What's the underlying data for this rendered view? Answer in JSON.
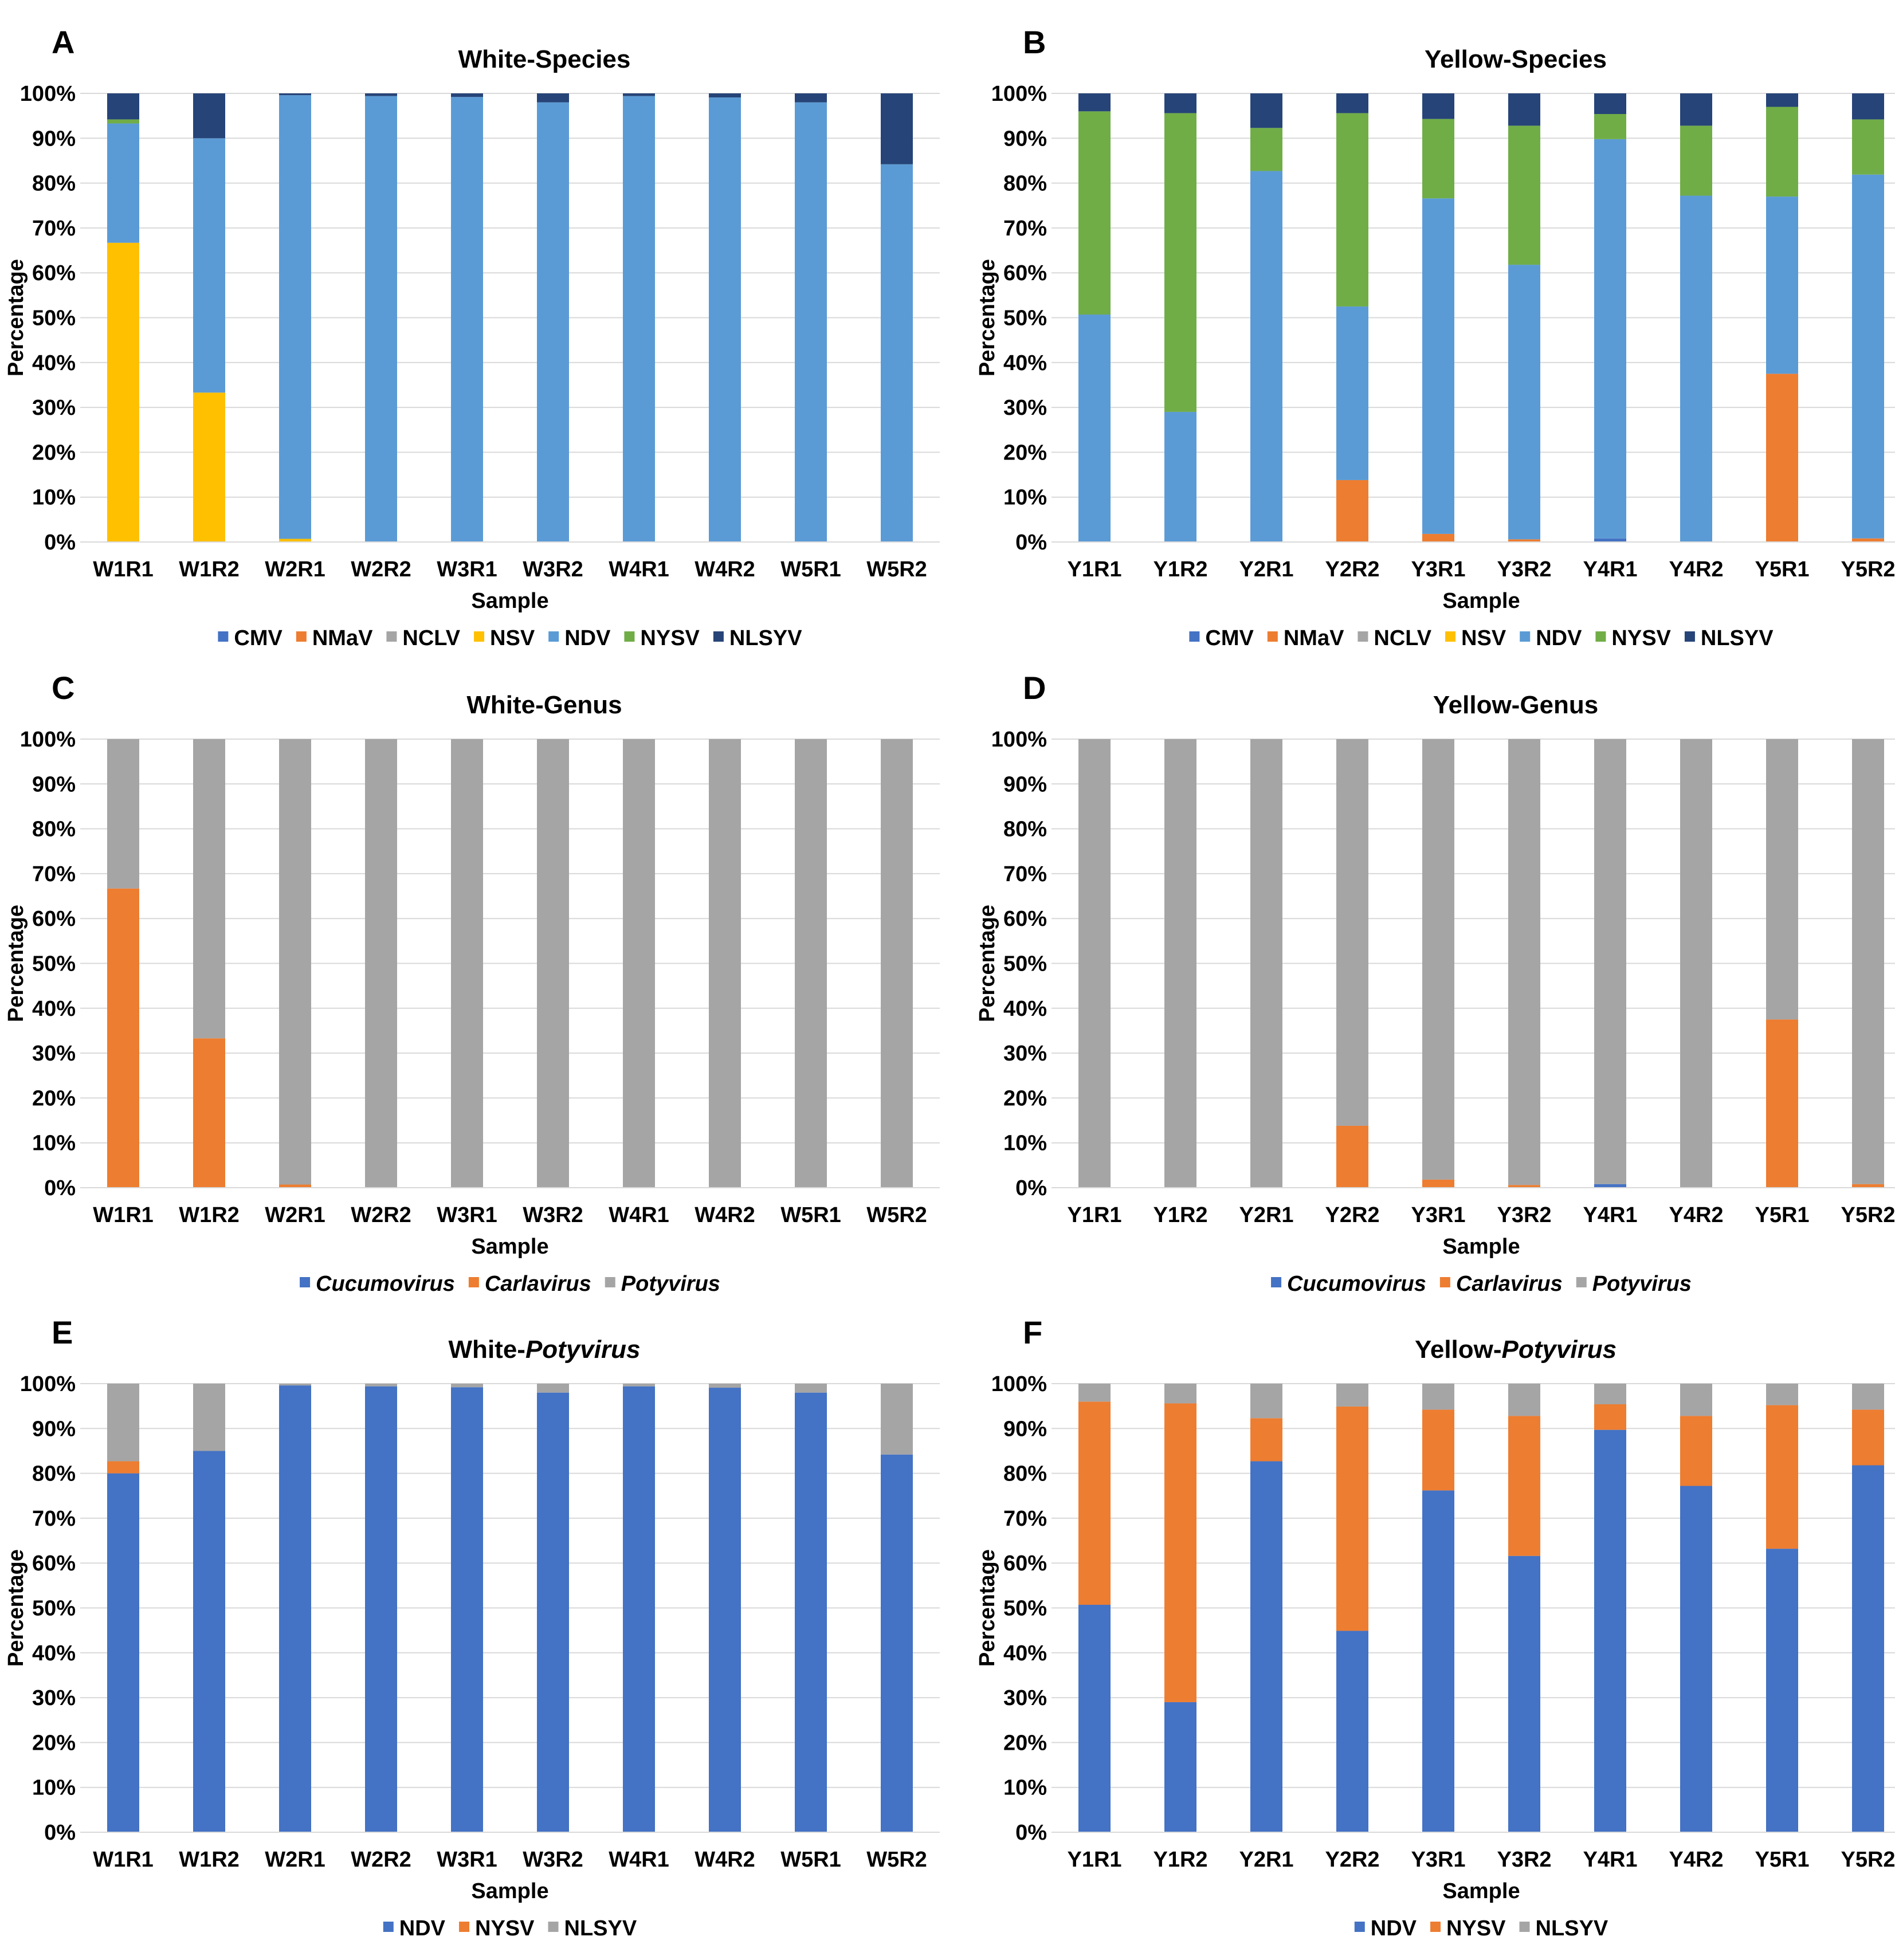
{
  "figure": {
    "panels": [
      {
        "letter": "A",
        "title": "White-Species"
      },
      {
        "letter": "B",
        "title": "Yellow-Species"
      },
      {
        "letter": "C",
        "title": "White-Genus"
      },
      {
        "letter": "D",
        "title": "Yellow-Genus"
      },
      {
        "letter": "E",
        "title": "White-Potyvirus"
      },
      {
        "letter": "F",
        "title": "Yellow-Potyvirus"
      }
    ]
  },
  "colors": {
    "CMV": "#4472C4",
    "NMaV": "#ED7D31",
    "NCLV": "#A5A5A5",
    "NSV": "#FFC000",
    "NDV_species": "#5B9BD5",
    "NYSV_species": "#70AD47",
    "NLSYV_species": "#264478",
    "Cucumovirus": "#4472C4",
    "Carlavirus": "#ED7D31",
    "Potyvirus": "#A5A5A5",
    "NDV_poty": "#4472C4",
    "NYSV_poty": "#ED7D31",
    "NLSYV_poty": "#A5A5A5"
  },
  "chart_data": [
    {
      "type": "bar",
      "stacked": true,
      "panel": "A",
      "title_parts": [
        {
          "text": "White-Species",
          "italic": false
        }
      ],
      "xlabel": "Sample",
      "ylabel": "Percentage",
      "ylim": [
        0,
        100
      ],
      "yticks": [
        "0%",
        "10%",
        "20%",
        "30%",
        "40%",
        "50%",
        "60%",
        "70%",
        "80%",
        "90%",
        "100%"
      ],
      "categories": [
        "W1R1",
        "W1R2",
        "W2R1",
        "W2R2",
        "W3R1",
        "W3R2",
        "W4R1",
        "W4R2",
        "W5R1",
        "W5R2"
      ],
      "series": [
        {
          "name": "CMV",
          "color": "#4472C4",
          "italic": false,
          "values": [
            0,
            0,
            0,
            0,
            0,
            0,
            0,
            0,
            0,
            0
          ]
        },
        {
          "name": "NMaV",
          "color": "#ED7D31",
          "italic": false,
          "values": [
            0,
            0,
            0,
            0,
            0,
            0,
            0,
            0,
            0,
            0
          ]
        },
        {
          "name": "NCLV",
          "color": "#A5A5A5",
          "italic": false,
          "values": [
            0,
            0,
            0,
            0,
            0,
            0,
            0,
            0,
            0,
            0
          ]
        },
        {
          "name": "NSV",
          "color": "#FFC000",
          "italic": false,
          "values": [
            66.7,
            33.3,
            0.7,
            0,
            0,
            0,
            0,
            0,
            0,
            0
          ]
        },
        {
          "name": "NDV",
          "color": "#5B9BD5",
          "italic": false,
          "values": [
            26.6,
            56.7,
            98.9,
            99.4,
            99.2,
            98.0,
            99.4,
            99.1,
            98.0,
            84.2
          ]
        },
        {
          "name": "NYSV",
          "color": "#70AD47",
          "italic": false,
          "values": [
            0.9,
            0,
            0,
            0,
            0,
            0,
            0,
            0,
            0,
            0
          ]
        },
        {
          "name": "NLSYV",
          "color": "#264478",
          "italic": false,
          "values": [
            5.8,
            10.0,
            0.4,
            0.6,
            0.8,
            2.0,
            0.6,
            0.9,
            2.0,
            15.8
          ]
        }
      ]
    },
    {
      "type": "bar",
      "stacked": true,
      "panel": "B",
      "title_parts": [
        {
          "text": "Yellow-Species",
          "italic": false
        }
      ],
      "xlabel": "Sample",
      "ylabel": "Percentage",
      "ylim": [
        0,
        100
      ],
      "yticks": [
        "0%",
        "10%",
        "20%",
        "30%",
        "40%",
        "50%",
        "60%",
        "70%",
        "80%",
        "90%",
        "100%"
      ],
      "categories": [
        "Y1R1",
        "Y1R2",
        "Y2R1",
        "Y2R2",
        "Y3R1",
        "Y3R2",
        "Y4R1",
        "Y4R2",
        "Y5R1",
        "Y5R2"
      ],
      "series": [
        {
          "name": "CMV",
          "color": "#4472C4",
          "italic": false,
          "values": [
            0,
            0,
            0,
            0,
            0,
            0,
            0.8,
            0,
            0,
            0
          ]
        },
        {
          "name": "NMaV",
          "color": "#ED7D31",
          "italic": false,
          "values": [
            0,
            0,
            0,
            13.8,
            1.8,
            0.6,
            0,
            0,
            37.5,
            0.8
          ]
        },
        {
          "name": "NCLV",
          "color": "#A5A5A5",
          "italic": false,
          "values": [
            0,
            0,
            0,
            0,
            0,
            0,
            0,
            0,
            0,
            0
          ]
        },
        {
          "name": "NSV",
          "color": "#FFC000",
          "italic": false,
          "values": [
            0,
            0,
            0,
            0,
            0,
            0,
            0,
            0,
            0,
            0
          ]
        },
        {
          "name": "NDV",
          "color": "#5B9BD5",
          "italic": false,
          "values": [
            50.7,
            29.0,
            82.7,
            38.7,
            74.8,
            61.2,
            89.0,
            77.2,
            39.5,
            81.1
          ]
        },
        {
          "name": "NYSV",
          "color": "#70AD47",
          "italic": false,
          "values": [
            45.3,
            66.6,
            9.6,
            43.1,
            17.7,
            31.0,
            5.6,
            15.6,
            20.0,
            12.3
          ]
        },
        {
          "name": "NLSYV",
          "color": "#264478",
          "italic": false,
          "values": [
            4.0,
            4.4,
            7.7,
            4.4,
            5.7,
            7.2,
            4.6,
            7.2,
            3.0,
            5.8
          ]
        }
      ]
    },
    {
      "type": "bar",
      "stacked": true,
      "panel": "C",
      "title_parts": [
        {
          "text": "White-Genus",
          "italic": false
        }
      ],
      "xlabel": "Sample",
      "ylabel": "Percentage",
      "ylim": [
        0,
        100
      ],
      "yticks": [
        "0%",
        "10%",
        "20%",
        "30%",
        "40%",
        "50%",
        "60%",
        "70%",
        "80%",
        "90%",
        "100%"
      ],
      "categories": [
        "W1R1",
        "W1R2",
        "W2R1",
        "W2R2",
        "W3R1",
        "W3R2",
        "W4R1",
        "W4R2",
        "W5R1",
        "W5R2"
      ],
      "series": [
        {
          "name": "Cucumovirus",
          "color": "#4472C4",
          "italic": true,
          "values": [
            0,
            0,
            0,
            0,
            0,
            0,
            0,
            0,
            0,
            0
          ]
        },
        {
          "name": "Carlavirus",
          "color": "#ED7D31",
          "italic": true,
          "values": [
            66.7,
            33.3,
            0.7,
            0,
            0,
            0,
            0,
            0,
            0,
            0
          ]
        },
        {
          "name": "Potyvirus",
          "color": "#A5A5A5",
          "italic": true,
          "values": [
            33.3,
            66.7,
            99.3,
            100,
            100,
            100,
            100,
            100,
            100,
            100
          ]
        }
      ]
    },
    {
      "type": "bar",
      "stacked": true,
      "panel": "D",
      "title_parts": [
        {
          "text": "Yellow-Genus",
          "italic": false
        }
      ],
      "xlabel": "Sample",
      "ylabel": "Percentage",
      "ylim": [
        0,
        100
      ],
      "yticks": [
        "0%",
        "10%",
        "20%",
        "30%",
        "40%",
        "50%",
        "60%",
        "70%",
        "80%",
        "90%",
        "100%"
      ],
      "categories": [
        "Y1R1",
        "Y1R2",
        "Y2R1",
        "Y2R2",
        "Y3R1",
        "Y3R2",
        "Y4R1",
        "Y4R2",
        "Y5R1",
        "Y5R2"
      ],
      "series": [
        {
          "name": "Cucumovirus",
          "color": "#4472C4",
          "italic": true,
          "values": [
            0,
            0,
            0,
            0,
            0,
            0,
            0.8,
            0,
            0,
            0
          ]
        },
        {
          "name": "Carlavirus",
          "color": "#ED7D31",
          "italic": true,
          "values": [
            0,
            0,
            0,
            13.8,
            1.8,
            0.6,
            0,
            0,
            37.5,
            0.8
          ]
        },
        {
          "name": "Potyvirus",
          "color": "#A5A5A5",
          "italic": true,
          "values": [
            100,
            100,
            100,
            86.2,
            98.2,
            99.4,
            99.2,
            100,
            62.5,
            99.2
          ]
        }
      ]
    },
    {
      "type": "bar",
      "stacked": true,
      "panel": "E",
      "title_parts": [
        {
          "text": "White-",
          "italic": false
        },
        {
          "text": "Potyvirus",
          "italic": true
        }
      ],
      "xlabel": "Sample",
      "ylabel": "Percentage",
      "ylim": [
        0,
        100
      ],
      "yticks": [
        "0%",
        "10%",
        "20%",
        "30%",
        "40%",
        "50%",
        "60%",
        "70%",
        "80%",
        "90%",
        "100%"
      ],
      "categories": [
        "W1R1",
        "W1R2",
        "W2R1",
        "W2R2",
        "W3R1",
        "W3R2",
        "W4R1",
        "W4R2",
        "W5R1",
        "W5R2"
      ],
      "series": [
        {
          "name": "NDV",
          "color": "#4472C4",
          "italic": false,
          "values": [
            80.0,
            85.0,
            99.6,
            99.4,
            99.2,
            98.0,
            99.4,
            99.1,
            98.0,
            84.2
          ]
        },
        {
          "name": "NYSV",
          "color": "#ED7D31",
          "italic": false,
          "values": [
            2.7,
            0,
            0,
            0,
            0,
            0,
            0,
            0,
            0,
            0
          ]
        },
        {
          "name": "NLSYV",
          "color": "#A5A5A5",
          "italic": false,
          "values": [
            17.3,
            15.0,
            0.4,
            0.6,
            0.8,
            2.0,
            0.6,
            0.9,
            2.0,
            15.8
          ]
        }
      ]
    },
    {
      "type": "bar",
      "stacked": true,
      "panel": "F",
      "title_parts": [
        {
          "text": "Yellow-",
          "italic": false
        },
        {
          "text": "Potyvirus",
          "italic": true
        }
      ],
      "xlabel": "Sample",
      "ylabel": "Percentage",
      "ylim": [
        0,
        100
      ],
      "yticks": [
        "0%",
        "10%",
        "20%",
        "30%",
        "40%",
        "50%",
        "60%",
        "70%",
        "80%",
        "90%",
        "100%"
      ],
      "categories": [
        "Y1R1",
        "Y1R2",
        "Y2R1",
        "Y2R2",
        "Y3R1",
        "Y3R2",
        "Y4R1",
        "Y4R2",
        "Y5R1",
        "Y5R2"
      ],
      "series": [
        {
          "name": "NDV",
          "color": "#4472C4",
          "italic": false,
          "values": [
            50.7,
            29.0,
            82.7,
            44.9,
            76.2,
            61.6,
            89.7,
            77.2,
            63.2,
            81.8
          ]
        },
        {
          "name": "NYSV",
          "color": "#ED7D31",
          "italic": false,
          "values": [
            45.3,
            66.6,
            9.6,
            50.0,
            18.0,
            31.2,
            5.7,
            15.6,
            32.0,
            12.4
          ]
        },
        {
          "name": "NLSYV",
          "color": "#A5A5A5",
          "italic": false,
          "values": [
            4.0,
            4.4,
            7.7,
            5.1,
            5.8,
            7.2,
            4.6,
            7.2,
            4.8,
            5.8
          ]
        }
      ]
    }
  ]
}
